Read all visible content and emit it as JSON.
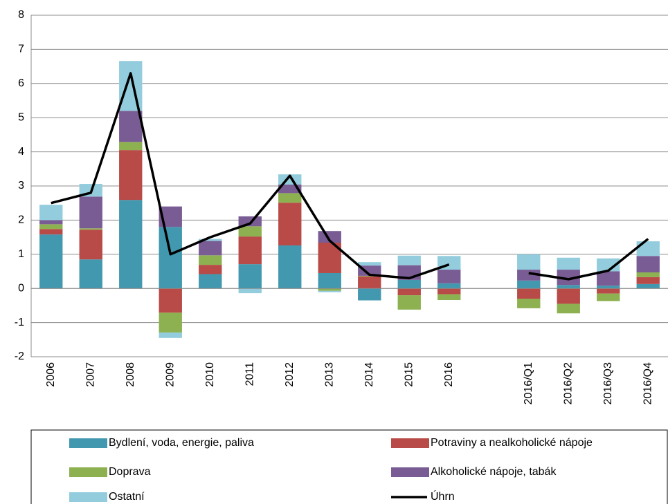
{
  "chart_data": {
    "type": "bar",
    "stacked": true,
    "categories": [
      "2006",
      "2007",
      "2008",
      "2009",
      "2010",
      "2011",
      "2012",
      "2013",
      "2014",
      "2015",
      "2016",
      null,
      "2016/Q1",
      "2016/Q2",
      "2016/Q3",
      "2016/Q4"
    ],
    "series": [
      {
        "name": "Bydlení, voda, energie, paliva",
        "color": "#4198af",
        "values": [
          1.58,
          0.85,
          2.59,
          1.8,
          0.42,
          0.71,
          1.26,
          0.45,
          -0.35,
          0.25,
          0.15,
          null,
          0.23,
          0.1,
          0.08,
          0.13
        ]
      },
      {
        "name": "Potraviny a nealkoholické nápoje",
        "color": "#b84a47",
        "values": [
          0.16,
          0.87,
          1.46,
          -0.71,
          0.27,
          0.81,
          1.25,
          0.89,
          0.35,
          -0.2,
          -0.17,
          null,
          -0.3,
          -0.45,
          -0.15,
          0.2
        ]
      },
      {
        "name": "Doprava",
        "color": "#8db050",
        "values": [
          0.14,
          0.04,
          0.24,
          -0.58,
          0.28,
          0.3,
          0.28,
          -0.07,
          0.02,
          -0.42,
          -0.17,
          null,
          -0.28,
          -0.28,
          -0.22,
          0.14
        ]
      },
      {
        "name": "Alkoholické nápoje, tabák",
        "color": "#7a5c94",
        "values": [
          0.12,
          0.93,
          0.91,
          0.6,
          0.42,
          0.29,
          0.25,
          0.34,
          0.3,
          0.43,
          0.4,
          null,
          0.32,
          0.45,
          0.42,
          0.48
        ]
      },
      {
        "name": "Ostatní",
        "color": "#93cddd",
        "values": [
          0.45,
          0.37,
          1.46,
          -0.16,
          0.06,
          -0.14,
          0.3,
          -0.04,
          0.1,
          0.28,
          0.4,
          null,
          0.45,
          0.35,
          0.38,
          0.43
        ]
      },
      {
        "name": "Úhrn",
        "type": "line",
        "color": "#000000",
        "values": [
          2.5,
          2.8,
          6.3,
          1.0,
          1.5,
          1.9,
          3.3,
          1.4,
          0.4,
          0.3,
          0.7,
          null,
          0.45,
          0.27,
          0.52,
          1.45
        ]
      }
    ],
    "ylim": [
      -2,
      8
    ],
    "yticks": [
      -2,
      -1,
      0,
      1,
      2,
      3,
      4,
      5,
      6,
      7,
      8
    ],
    "grid": true,
    "legend": "bottom"
  }
}
